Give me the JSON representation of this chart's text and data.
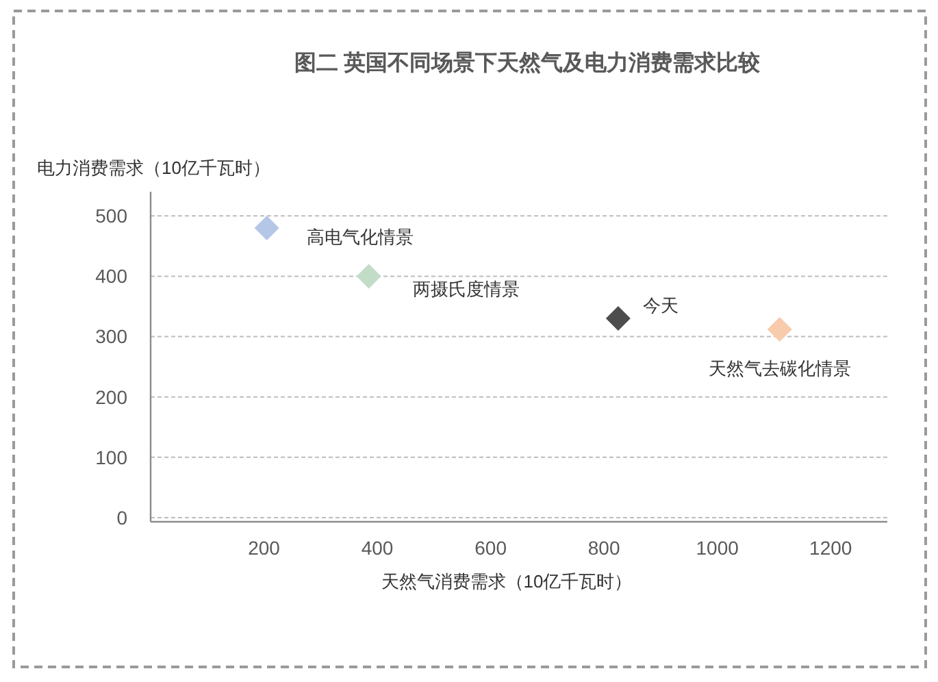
{
  "chart_data": {
    "type": "scatter",
    "title": "图二 英国不同场景下天然气及电力消费需求比较",
    "xlabel": "天然气消费需求（10亿千瓦时）",
    "ylabel": "电力消费需求（10亿千瓦时）",
    "series": [
      {
        "name": "高电气化情景",
        "color": "#b4c7e7",
        "x": [
          205
        ],
        "values": [
          480
        ]
      },
      {
        "name": "两摄氏度情景",
        "color": "#c3dcc8",
        "x": [
          385
        ],
        "values": [
          400
        ]
      },
      {
        "name": "今天",
        "color": "#4d4d4d",
        "x": [
          825
        ],
        "values": [
          330
        ]
      },
      {
        "name": "天然气去碳化情景",
        "color": "#f8cbad",
        "x": [
          1110
        ],
        "values": [
          312
        ]
      }
    ],
    "xlim": [
      0,
      1300
    ],
    "xticks": [
      200,
      400,
      600,
      800,
      1000,
      1200
    ],
    "ylim": [
      0,
      540
    ],
    "yticks": [
      0,
      100,
      200,
      300,
      400,
      500
    ],
    "grid": "y",
    "legend": false,
    "marker": "diamond"
  }
}
